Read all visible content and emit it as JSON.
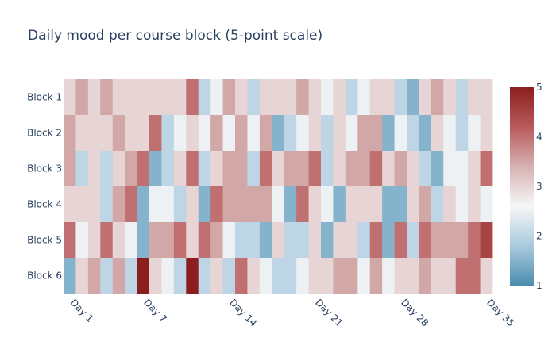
{
  "chart_data": {
    "type": "heatmap",
    "title": "Daily mood per course block (5-point scale)",
    "x": [
      "Day 1",
      "Day 2",
      "Day 3",
      "Day 4",
      "Day 5",
      "Day 6",
      "Day 7",
      "Day 8",
      "Day 9",
      "Day 10",
      "Day 11",
      "Day 12",
      "Day 13",
      "Day 14",
      "Day 15",
      "Day 16",
      "Day 17",
      "Day 18",
      "Day 19",
      "Day 20",
      "Day 21",
      "Day 22",
      "Day 23",
      "Day 24",
      "Day 25",
      "Day 26",
      "Day 27",
      "Day 28",
      "Day 29",
      "Day 30",
      "Day 31",
      "Day 32",
      "Day 33",
      "Day 34",
      "Day 35"
    ],
    "x_tick_labels": [
      "Day 1",
      "Day 7",
      "Day 14",
      "Day 21",
      "Day 28",
      "Day 35"
    ],
    "y": [
      "Block 1",
      "Block 2",
      "Block 3",
      "Block 4",
      "Block 5",
      "Block 6"
    ],
    "z": [
      [
        3,
        3.5,
        3,
        3.5,
        3,
        3,
        3,
        3,
        3,
        3,
        4,
        2,
        2.5,
        3.5,
        3,
        2,
        3,
        3,
        3,
        3.5,
        3,
        2.5,
        3,
        2,
        2.5,
        3,
        3,
        2,
        1.5,
        3,
        3.5,
        3,
        2,
        3,
        3
      ],
      [
        3.5,
        3,
        3,
        3,
        3.5,
        3,
        3,
        4,
        2,
        2.5,
        3,
        2.5,
        3.5,
        2.5,
        3.5,
        2.5,
        3.5,
        1.5,
        2,
        2.5,
        3,
        2,
        3,
        2.5,
        3.5,
        3.5,
        1.5,
        2.5,
        2,
        1.5,
        3,
        2.5,
        2,
        2.5,
        3
      ],
      [
        3.5,
        2,
        3,
        2,
        3,
        3.5,
        4,
        1.5,
        2,
        3,
        4,
        2,
        3,
        3.5,
        3.5,
        2,
        4,
        3,
        3.5,
        3.5,
        4,
        2,
        3,
        3.5,
        3.5,
        4,
        3,
        3.5,
        3,
        2,
        1.5,
        2.5,
        2.5,
        3,
        4
      ],
      [
        3,
        3,
        3,
        2,
        3.5,
        4,
        1.5,
        2.5,
        2.5,
        2,
        3,
        1.5,
        4,
        3.5,
        3.5,
        3.5,
        3.5,
        2.5,
        1.5,
        4,
        3,
        2.5,
        1.5,
        3,
        3,
        3,
        1.5,
        1.5,
        3,
        3.5,
        2,
        3,
        2.5,
        3,
        2.5
      ],
      [
        4,
        2.5,
        3,
        4,
        3,
        2.5,
        1.5,
        3.5,
        3.5,
        4,
        3,
        4,
        3.5,
        2.5,
        2,
        2,
        1.5,
        3,
        2,
        2,
        3,
        1.5,
        3,
        3,
        2,
        4,
        1.5,
        4,
        2,
        4,
        3.5,
        3.5,
        3.5,
        4,
        4.5
      ],
      [
        1.5,
        3,
        3.5,
        2,
        3.5,
        2,
        5,
        3,
        2.5,
        2,
        5,
        2,
        3,
        2,
        4,
        3,
        2.5,
        2,
        2,
        2.5,
        3,
        3,
        3.5,
        3.5,
        2.5,
        3.5,
        2.5,
        3,
        3,
        3.5,
        3,
        3,
        4,
        4,
        3
      ]
    ],
    "zmin": 1,
    "zmax": 5,
    "colorbar_ticks": [
      1,
      2,
      3,
      4,
      5
    ],
    "colorscale": [
      "#4b8cb0",
      "#a9cadd",
      "#f7f7f7",
      "#d6b2b2",
      "#b85a5a",
      "#8b1e1e"
    ]
  }
}
